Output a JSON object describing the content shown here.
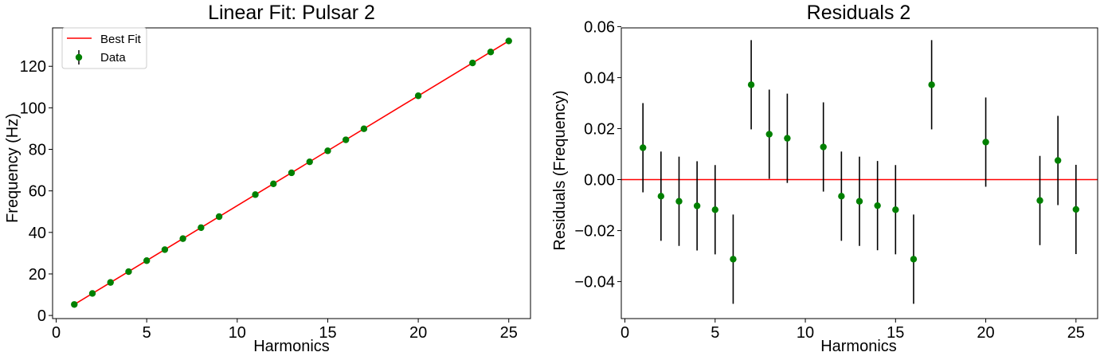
{
  "chart_data": [
    {
      "type": "scatter",
      "title": "Linear Fit: Pulsar 2",
      "xlabel": "Harmonics",
      "ylabel": "Frequency (Hz)",
      "xlim": [
        -0.2,
        26.2
      ],
      "ylim": [
        -1.5,
        138.5
      ],
      "xticks": [
        0,
        5,
        10,
        15,
        20,
        25
      ],
      "xtick_labels": [
        "0",
        "5",
        "10",
        "15",
        "20",
        "25"
      ],
      "yticks": [
        0,
        20,
        40,
        60,
        80,
        100,
        120
      ],
      "ytick_labels": [
        "0",
        "20",
        "40",
        "60",
        "80",
        "100",
        "120"
      ],
      "grid": false,
      "legend": {
        "placement": "top-left",
        "entries": [
          "Best Fit",
          "Data"
        ]
      },
      "series": [
        {
          "name": "Best Fit",
          "kind": "line",
          "color": "#ff0000",
          "x": [
            1,
            25
          ],
          "y": [
            5.3,
            132.2
          ]
        },
        {
          "name": "Data",
          "kind": "errorbar",
          "color": "#008000",
          "ecolor": "#000000",
          "x": [
            1,
            2,
            3,
            4,
            5,
            6,
            7,
            8,
            9,
            11,
            12,
            13,
            14,
            15,
            16,
            17,
            20,
            23,
            24,
            25
          ],
          "y": [
            5.3,
            10.6,
            15.9,
            21.1,
            26.4,
            31.7,
            37.0,
            42.3,
            47.6,
            58.2,
            63.4,
            68.7,
            74.0,
            79.3,
            84.6,
            89.9,
            105.8,
            121.6,
            126.9,
            132.2
          ],
          "yerr": 0.0175
        }
      ]
    },
    {
      "type": "scatter",
      "title": "Residuals 2",
      "xlabel": "Harmonics",
      "ylabel": "Residuals (Frequency)",
      "xlim": [
        -0.2,
        26.2
      ],
      "ylim": [
        -0.0545,
        0.0595
      ],
      "xticks": [
        0,
        5,
        10,
        15,
        20,
        25
      ],
      "xtick_labels": [
        "0",
        "5",
        "10",
        "15",
        "20",
        "25"
      ],
      "yticks": [
        -0.04,
        -0.02,
        0.0,
        0.02,
        0.04,
        0.06
      ],
      "ytick_labels": [
        "−0.04",
        "−0.02",
        "0.00",
        "0.02",
        "0.04",
        "0.06"
      ],
      "grid": false,
      "reference_line": {
        "y": 0,
        "color": "#ff0000"
      },
      "series": [
        {
          "kind": "errorbar",
          "color": "#008000",
          "ecolor": "#000000",
          "x": [
            1,
            2,
            3,
            4,
            5,
            6,
            7,
            8,
            9,
            11,
            12,
            13,
            14,
            15,
            16,
            17,
            20,
            23,
            24,
            25
          ],
          "y": [
            0.0125,
            -0.0065,
            -0.0085,
            -0.0103,
            -0.0118,
            -0.0312,
            0.0372,
            0.0178,
            0.0162,
            0.0128,
            -0.0065,
            -0.0085,
            -0.0102,
            -0.0118,
            -0.0312,
            0.0372,
            0.0147,
            -0.0082,
            0.0075,
            -0.0117
          ],
          "yerr": 0.0175
        }
      ]
    }
  ]
}
